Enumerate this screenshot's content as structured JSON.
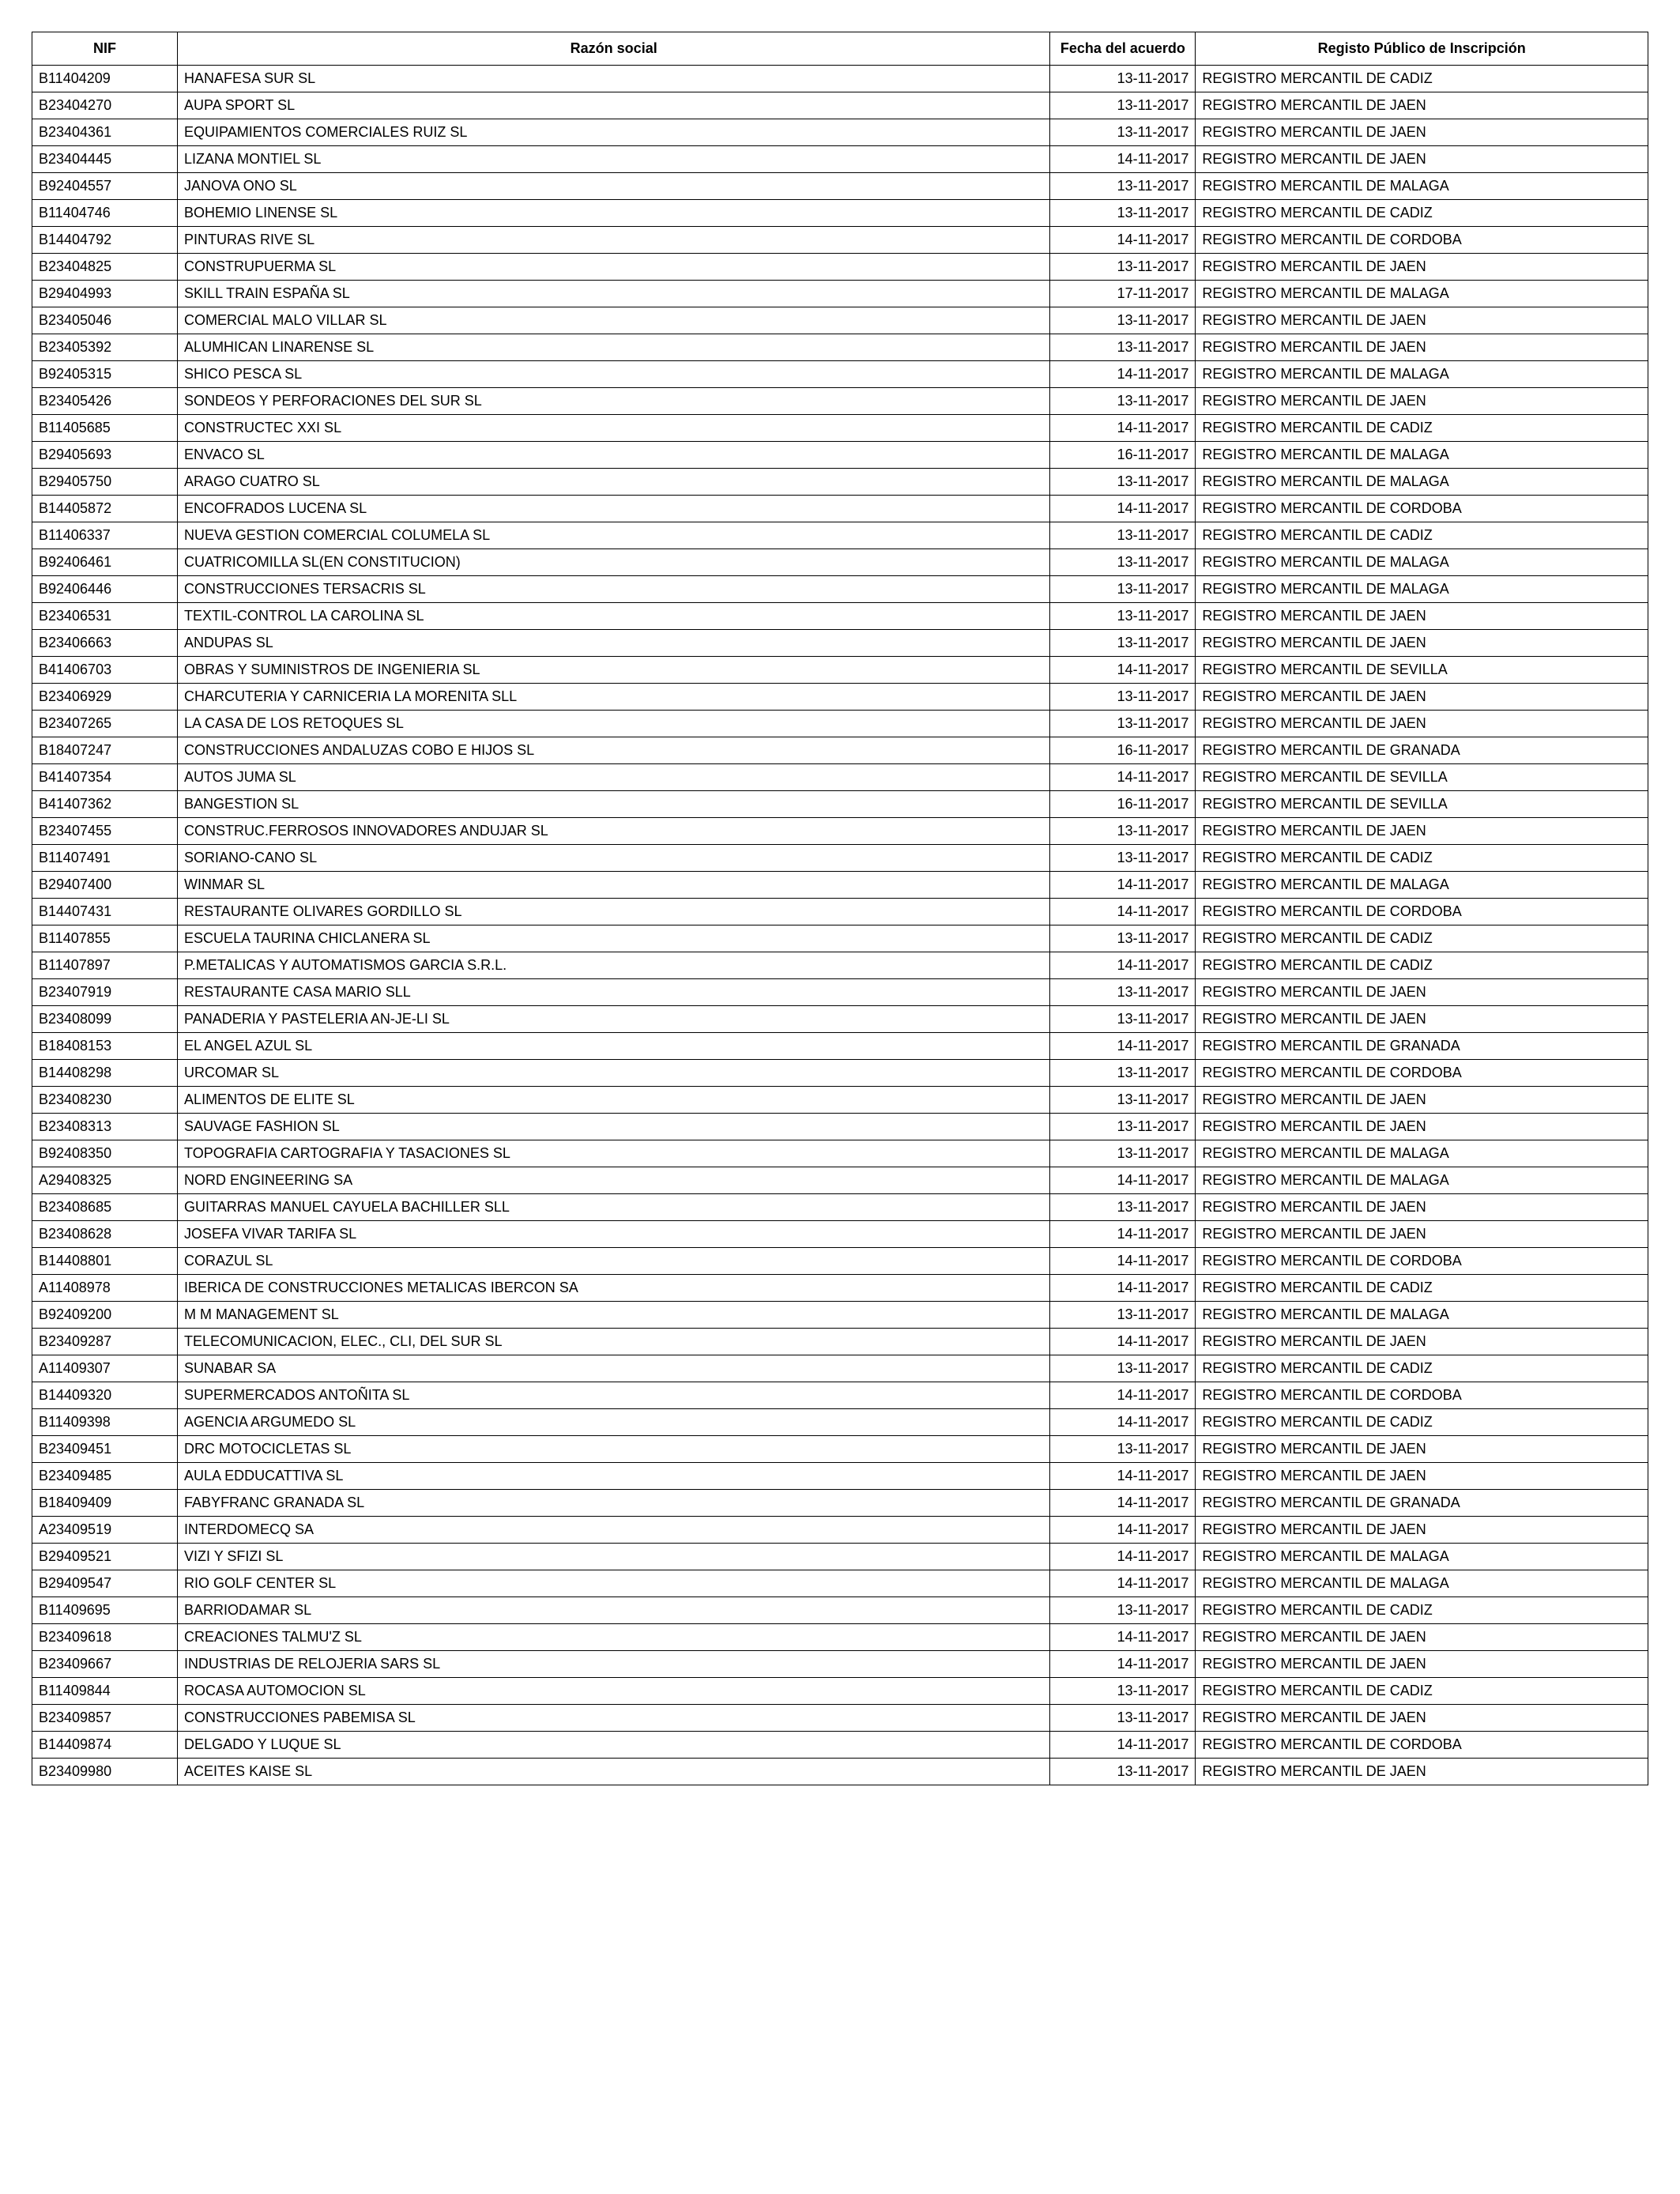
{
  "table": {
    "columns": [
      "NIF",
      "Razón social",
      "Fecha del acuerdo",
      "Registo Público de Inscripción"
    ],
    "rows": [
      [
        "B11404209",
        "HANAFESA SUR SL",
        "13-11-2017",
        "REGISTRO MERCANTIL DE CADIZ"
      ],
      [
        "B23404270",
        "AUPA SPORT SL",
        "13-11-2017",
        "REGISTRO MERCANTIL DE JAEN"
      ],
      [
        "B23404361",
        "EQUIPAMIENTOS COMERCIALES RUIZ SL",
        "13-11-2017",
        "REGISTRO MERCANTIL DE JAEN"
      ],
      [
        "B23404445",
        "LIZANA MONTIEL SL",
        "14-11-2017",
        "REGISTRO MERCANTIL DE JAEN"
      ],
      [
        "B92404557",
        "JANOVA ONO SL",
        "13-11-2017",
        "REGISTRO MERCANTIL DE MALAGA"
      ],
      [
        "B11404746",
        "BOHEMIO LINENSE SL",
        "13-11-2017",
        "REGISTRO MERCANTIL DE CADIZ"
      ],
      [
        "B14404792",
        "PINTURAS RIVE SL",
        "14-11-2017",
        "REGISTRO MERCANTIL DE CORDOBA"
      ],
      [
        "B23404825",
        "CONSTRUPUERMA SL",
        "13-11-2017",
        "REGISTRO MERCANTIL DE JAEN"
      ],
      [
        "B29404993",
        "SKILL TRAIN ESPAÑA SL",
        "17-11-2017",
        "REGISTRO MERCANTIL DE MALAGA"
      ],
      [
        "B23405046",
        "COMERCIAL MALO VILLAR SL",
        "13-11-2017",
        "REGISTRO MERCANTIL DE JAEN"
      ],
      [
        "B23405392",
        "ALUMHICAN LINARENSE SL",
        "13-11-2017",
        "REGISTRO MERCANTIL DE JAEN"
      ],
      [
        "B92405315",
        "SHICO PESCA SL",
        "14-11-2017",
        "REGISTRO MERCANTIL DE MALAGA"
      ],
      [
        "B23405426",
        "SONDEOS Y PERFORACIONES DEL SUR SL",
        "13-11-2017",
        "REGISTRO MERCANTIL DE JAEN"
      ],
      [
        "B11405685",
        "CONSTRUCTEC XXI SL",
        "14-11-2017",
        "REGISTRO MERCANTIL DE CADIZ"
      ],
      [
        "B29405693",
        "ENVACO SL",
        "16-11-2017",
        "REGISTRO MERCANTIL DE MALAGA"
      ],
      [
        "B29405750",
        "ARAGO CUATRO SL",
        "13-11-2017",
        "REGISTRO MERCANTIL DE MALAGA"
      ],
      [
        "B14405872",
        "ENCOFRADOS LUCENA SL",
        "14-11-2017",
        "REGISTRO MERCANTIL DE CORDOBA"
      ],
      [
        "B11406337",
        "NUEVA GESTION COMERCIAL COLUMELA SL",
        "13-11-2017",
        "REGISTRO MERCANTIL DE CADIZ"
      ],
      [
        "B92406461",
        "CUATRICOMILLA SL(EN CONSTITUCION)",
        "13-11-2017",
        "REGISTRO MERCANTIL DE MALAGA"
      ],
      [
        "B92406446",
        "CONSTRUCCIONES TERSACRIS SL",
        "13-11-2017",
        "REGISTRO MERCANTIL DE MALAGA"
      ],
      [
        "B23406531",
        "TEXTIL-CONTROL LA CAROLINA SL",
        "13-11-2017",
        "REGISTRO MERCANTIL DE JAEN"
      ],
      [
        "B23406663",
        "ANDUPAS SL",
        "13-11-2017",
        "REGISTRO MERCANTIL DE JAEN"
      ],
      [
        "B41406703",
        "OBRAS Y SUMINISTROS DE INGENIERIA SL",
        "14-11-2017",
        "REGISTRO MERCANTIL DE SEVILLA"
      ],
      [
        "B23406929",
        "CHARCUTERIA Y CARNICERIA LA MORENITA SLL",
        "13-11-2017",
        "REGISTRO MERCANTIL DE JAEN"
      ],
      [
        "B23407265",
        "LA CASA DE LOS RETOQUES SL",
        "13-11-2017",
        "REGISTRO MERCANTIL DE JAEN"
      ],
      [
        "B18407247",
        "CONSTRUCCIONES ANDALUZAS COBO E HIJOS SL",
        "16-11-2017",
        "REGISTRO MERCANTIL DE GRANADA"
      ],
      [
        "B41407354",
        "AUTOS JUMA SL",
        "14-11-2017",
        "REGISTRO MERCANTIL DE SEVILLA"
      ],
      [
        "B41407362",
        "BANGESTION SL",
        "16-11-2017",
        "REGISTRO MERCANTIL DE SEVILLA"
      ],
      [
        "B23407455",
        "CONSTRUC.FERROSOS INNOVADORES ANDUJAR SL",
        "13-11-2017",
        "REGISTRO MERCANTIL DE JAEN"
      ],
      [
        "B11407491",
        "SORIANO-CANO SL",
        "13-11-2017",
        "REGISTRO MERCANTIL DE CADIZ"
      ],
      [
        "B29407400",
        "WINMAR SL",
        "14-11-2017",
        "REGISTRO MERCANTIL DE MALAGA"
      ],
      [
        "B14407431",
        "RESTAURANTE OLIVARES GORDILLO SL",
        "14-11-2017",
        "REGISTRO MERCANTIL DE CORDOBA"
      ],
      [
        "B11407855",
        "ESCUELA TAURINA CHICLANERA SL",
        "13-11-2017",
        "REGISTRO MERCANTIL DE CADIZ"
      ],
      [
        "B11407897",
        "P.METALICAS Y AUTOMATISMOS GARCIA S.R.L.",
        "14-11-2017",
        "REGISTRO MERCANTIL DE CADIZ"
      ],
      [
        "B23407919",
        "RESTAURANTE CASA MARIO SLL",
        "13-11-2017",
        "REGISTRO MERCANTIL DE JAEN"
      ],
      [
        "B23408099",
        "PANADERIA Y PASTELERIA AN-JE-LI SL",
        "13-11-2017",
        "REGISTRO MERCANTIL DE JAEN"
      ],
      [
        "B18408153",
        "EL ANGEL AZUL SL",
        "14-11-2017",
        "REGISTRO MERCANTIL DE GRANADA"
      ],
      [
        "B14408298",
        "URCOMAR SL",
        "13-11-2017",
        "REGISTRO MERCANTIL DE CORDOBA"
      ],
      [
        "B23408230",
        "ALIMENTOS DE ELITE SL",
        "13-11-2017",
        "REGISTRO MERCANTIL DE JAEN"
      ],
      [
        "B23408313",
        "SAUVAGE FASHION SL",
        "13-11-2017",
        "REGISTRO MERCANTIL DE JAEN"
      ],
      [
        "B92408350",
        "TOPOGRAFIA CARTOGRAFIA Y TASACIONES SL",
        "13-11-2017",
        "REGISTRO MERCANTIL DE MALAGA"
      ],
      [
        "A29408325",
        "NORD ENGINEERING SA",
        "14-11-2017",
        "REGISTRO MERCANTIL DE MALAGA"
      ],
      [
        "B23408685",
        "GUITARRAS MANUEL CAYUELA BACHILLER SLL",
        "13-11-2017",
        "REGISTRO MERCANTIL DE JAEN"
      ],
      [
        "B23408628",
        "JOSEFA VIVAR TARIFA SL",
        "14-11-2017",
        "REGISTRO MERCANTIL DE JAEN"
      ],
      [
        "B14408801",
        "CORAZUL SL",
        "14-11-2017",
        "REGISTRO MERCANTIL DE CORDOBA"
      ],
      [
        "A11408978",
        "IBERICA DE CONSTRUCCIONES METALICAS IBERCON SA",
        "14-11-2017",
        "REGISTRO MERCANTIL DE CADIZ"
      ],
      [
        "B92409200",
        "M M MANAGEMENT SL",
        "13-11-2017",
        "REGISTRO MERCANTIL DE MALAGA"
      ],
      [
        "B23409287",
        "TELECOMUNICACION, ELEC., CLI, DEL SUR SL",
        "14-11-2017",
        "REGISTRO MERCANTIL DE JAEN"
      ],
      [
        "A11409307",
        "SUNABAR SA",
        "13-11-2017",
        "REGISTRO MERCANTIL DE CADIZ"
      ],
      [
        "B14409320",
        "SUPERMERCADOS ANTOÑITA SL",
        "14-11-2017",
        "REGISTRO MERCANTIL DE CORDOBA"
      ],
      [
        "B11409398",
        "AGENCIA ARGUMEDO SL",
        "14-11-2017",
        "REGISTRO MERCANTIL DE CADIZ"
      ],
      [
        "B23409451",
        "DRC MOTOCICLETAS SL",
        "13-11-2017",
        "REGISTRO MERCANTIL DE JAEN"
      ],
      [
        "B23409485",
        "AULA EDDUCATTIVA SL",
        "14-11-2017",
        "REGISTRO MERCANTIL DE JAEN"
      ],
      [
        "B18409409",
        "FABYFRANC GRANADA SL",
        "14-11-2017",
        "REGISTRO MERCANTIL DE GRANADA"
      ],
      [
        "A23409519",
        "INTERDOMECQ SA",
        "14-11-2017",
        "REGISTRO MERCANTIL DE JAEN"
      ],
      [
        "B29409521",
        "VIZI Y SFIZI SL",
        "14-11-2017",
        "REGISTRO MERCANTIL DE MALAGA"
      ],
      [
        "B29409547",
        "RIO GOLF CENTER SL",
        "14-11-2017",
        "REGISTRO MERCANTIL DE MALAGA"
      ],
      [
        "B11409695",
        "BARRIODAMAR SL",
        "13-11-2017",
        "REGISTRO MERCANTIL DE CADIZ"
      ],
      [
        "B23409618",
        "CREACIONES TALMU'Z SL",
        "14-11-2017",
        "REGISTRO MERCANTIL DE JAEN"
      ],
      [
        "B23409667",
        "INDUSTRIAS DE RELOJERIA SARS SL",
        "14-11-2017",
        "REGISTRO MERCANTIL DE JAEN"
      ],
      [
        "B11409844",
        "ROCASA AUTOMOCION SL",
        "13-11-2017",
        "REGISTRO MERCANTIL DE CADIZ"
      ],
      [
        "B23409857",
        "CONSTRUCCIONES PABEMISA SL",
        "13-11-2017",
        "REGISTRO MERCANTIL DE JAEN"
      ],
      [
        "B14409874",
        "DELGADO Y LUQUE SL",
        "14-11-2017",
        "REGISTRO MERCANTIL DE CORDOBA"
      ],
      [
        "B23409980",
        "ACEITES KAISE SL",
        "13-11-2017",
        "REGISTRO MERCANTIL DE JAEN"
      ]
    ],
    "styles": {
      "border_color": "#000000",
      "background_color": "#ffffff",
      "text_color": "#000000",
      "header_font_weight": "bold",
      "font_size_pt": 13,
      "col_widths_pct": [
        9,
        54,
        9,
        28
      ],
      "col_align": [
        "left",
        "left",
        "right",
        "left"
      ]
    }
  }
}
